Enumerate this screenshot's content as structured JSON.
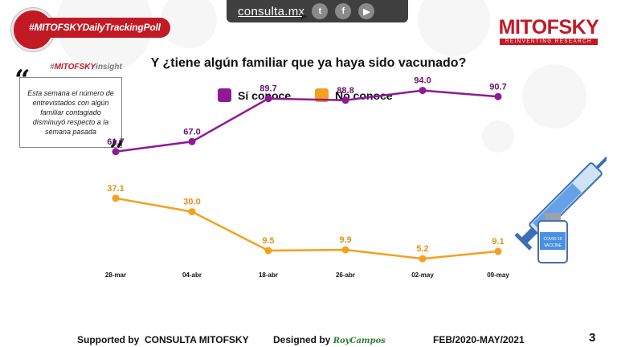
{
  "header": {
    "site": "consulta.mx",
    "social_icons": [
      "twitter-icon",
      "facebook-icon",
      "youtube-icon"
    ],
    "hashtag": "#MITOFSKYDailyTrackingPoll",
    "brand_name": "MITOFSKY",
    "brand_tagline": "REINVENTING RESEARCH"
  },
  "insight": {
    "tag_prefix": "#",
    "tag_brand": "MITOFSKY",
    "tag_suffix": "insight",
    "text": "Esta semana el número de entrevistados con algún familiar contagiado disminuyó respecto a la semana pasada"
  },
  "colors": {
    "brand_red": "#c21a25",
    "si_conoce": "#8e1a96",
    "no_conoce": "#f4a020"
  },
  "chart_data": {
    "type": "line",
    "title": "Y ¿tiene algún  familiar que ya haya sido vacunado?",
    "categories": [
      "28-mar",
      "04-abr",
      "18-abr",
      "26-abr",
      "02-may",
      "09-may"
    ],
    "series": [
      {
        "name": "Sí conoce",
        "values": [
          61.7,
          67.0,
          89.7,
          88.8,
          94.0,
          90.7
        ],
        "labels": [
          "61.7",
          "67.0",
          "89.7",
          "88.8",
          "94.0",
          "90.7"
        ]
      },
      {
        "name": "No conoce",
        "values": [
          37.1,
          30.0,
          9.5,
          9.9,
          5.2,
          9.1
        ],
        "labels": [
          "37.1",
          "30.0",
          "9.5",
          "9.9",
          "5.2",
          "9.1"
        ]
      }
    ],
    "ylim": [
      0,
      100
    ],
    "grid": false,
    "legend_position": "top"
  },
  "footer": {
    "supported_prefix": "Supported by",
    "supported_brand": "CONSULTA  MITOFSKY",
    "designed_prefix": "Designed by",
    "designer": "RoyCampos",
    "range": "FEB/2020-MAY/2021",
    "page": "3"
  }
}
